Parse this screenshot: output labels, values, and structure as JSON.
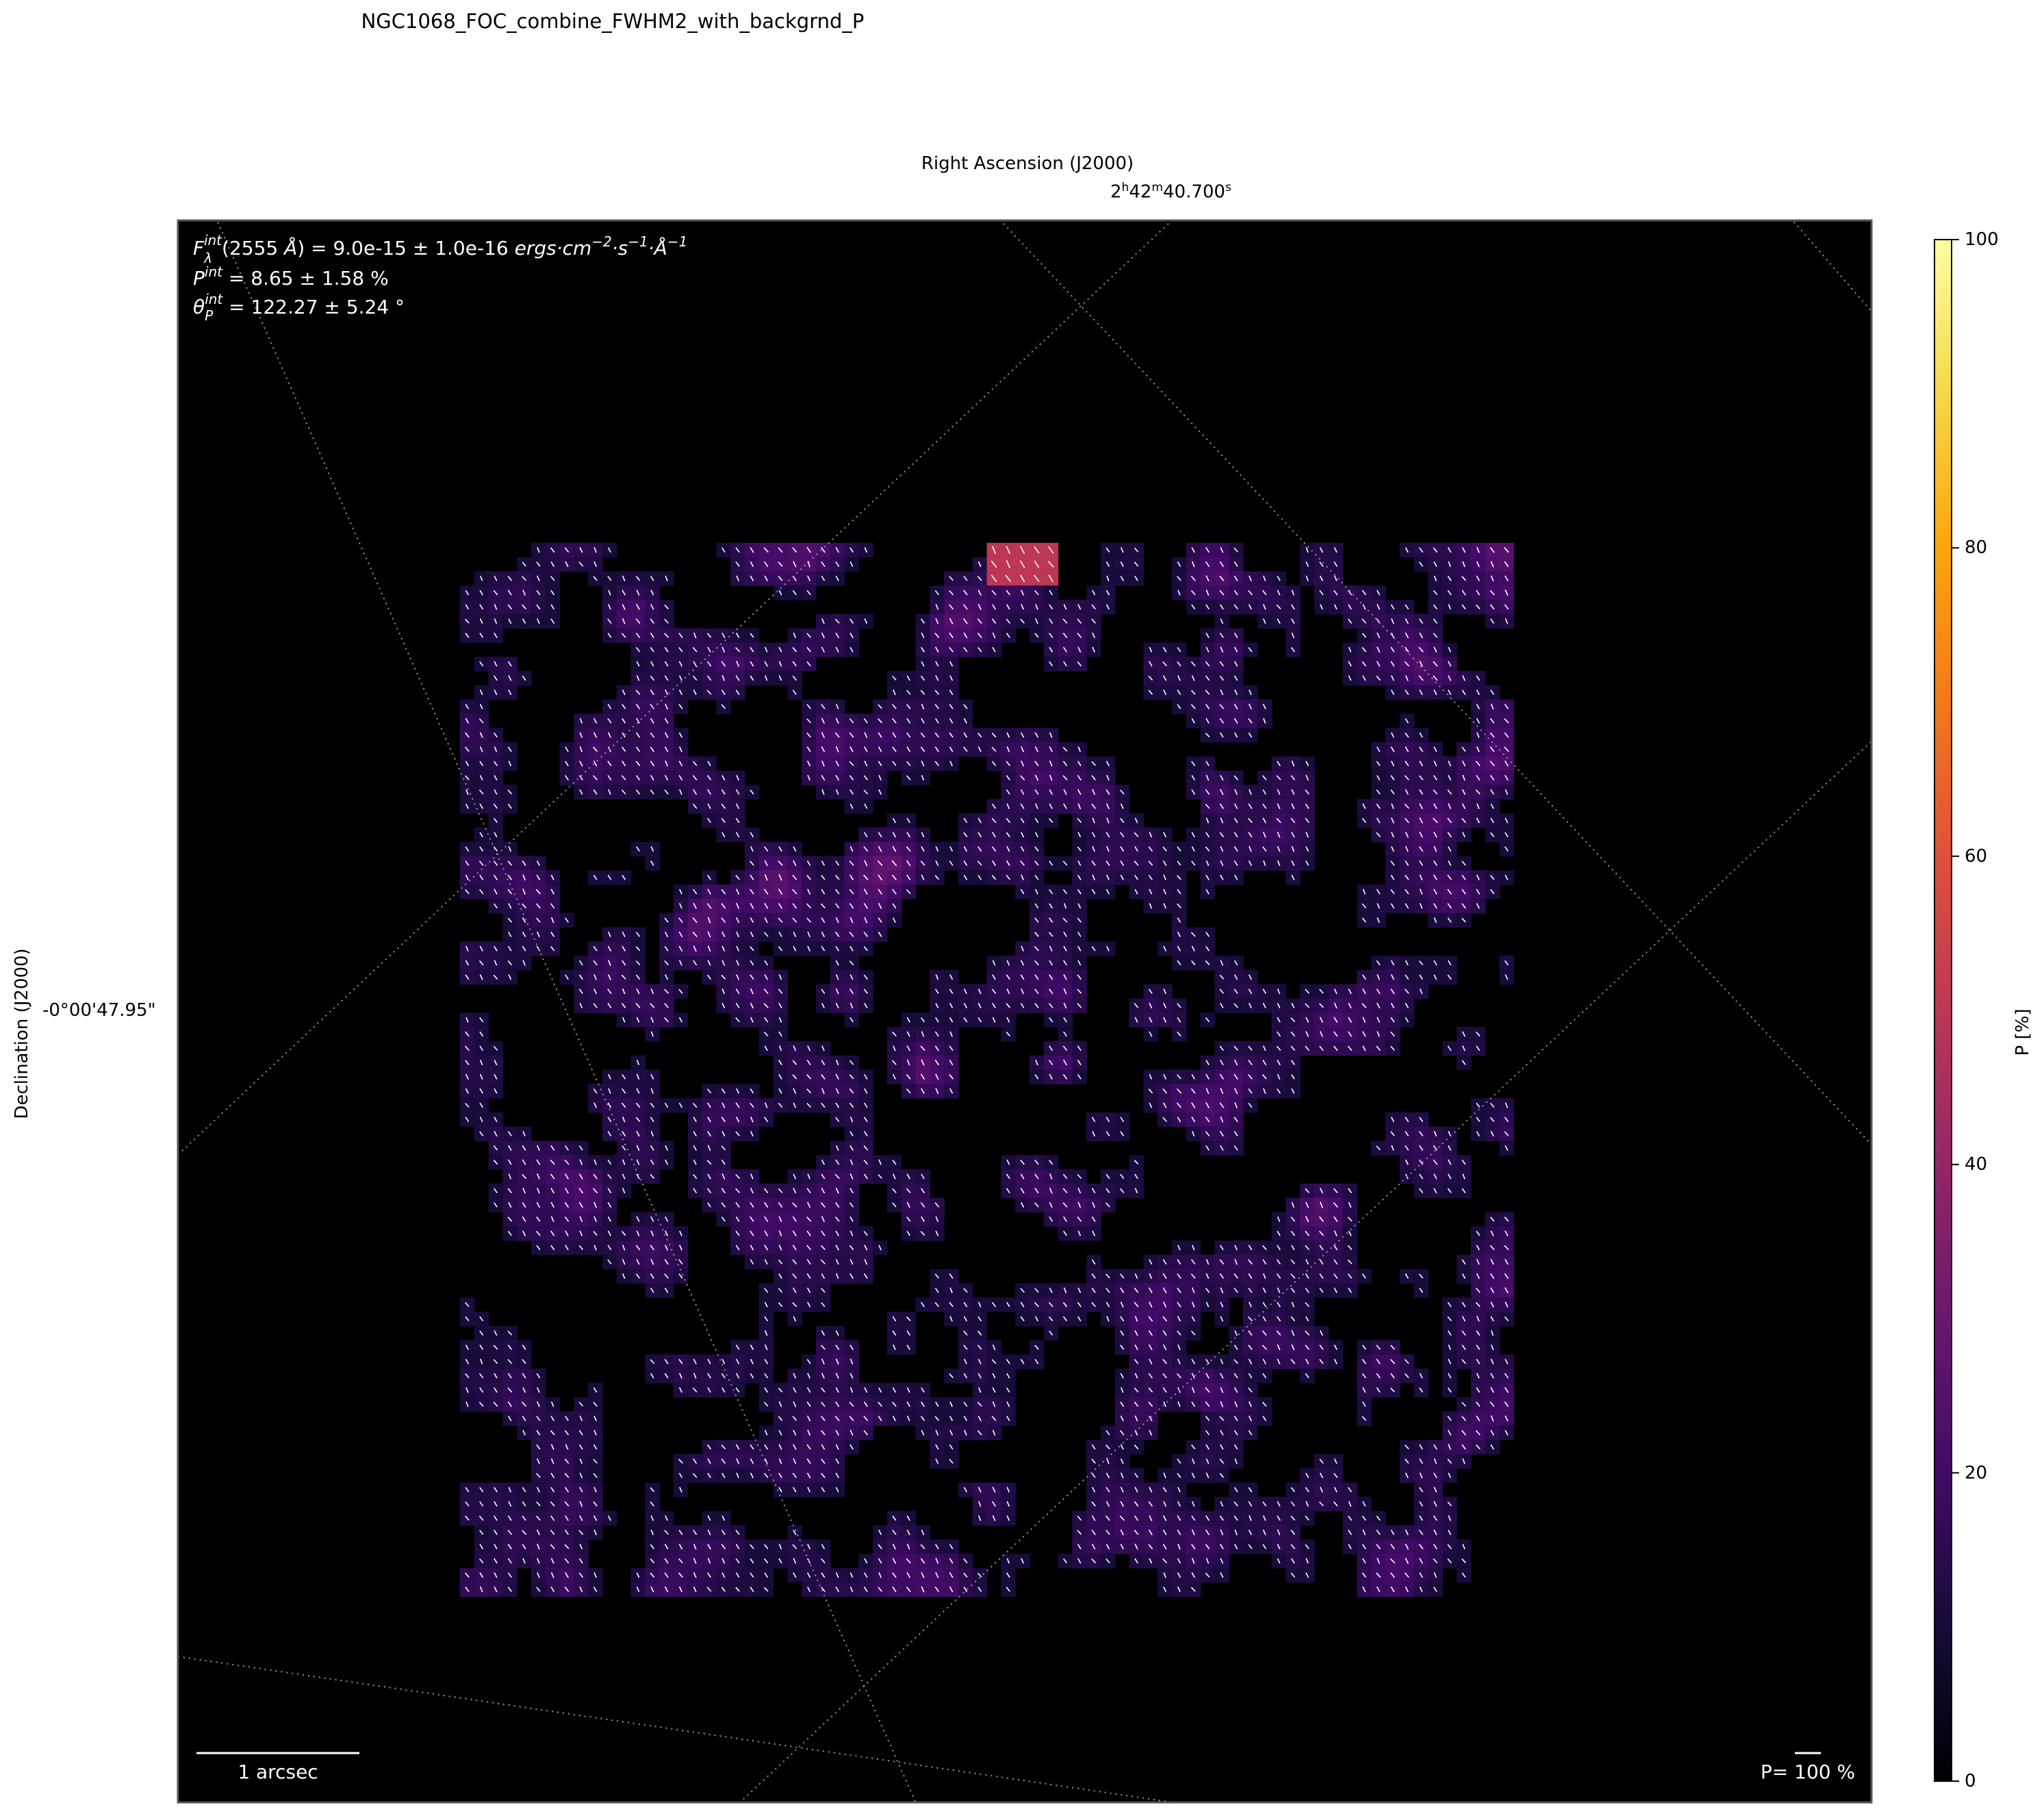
{
  "figure": {
    "title": "NGC1068_FOC_combine_FWHM2_with_backgrnd_P",
    "xlabel": "Right Ascension (J2000)",
    "ylabel": "Declination (J2000)",
    "ra_tick": "2h42m40.700s",
    "ra_tick_parts": {
      "h": "2",
      "hs": "h",
      "m": "42",
      "ms": "m",
      "s": "40.700",
      "ss": "s"
    },
    "dec_tick": "-0°00'47.95\"",
    "colorbar_label": "P [%]",
    "scale_bar_label": "1 arcsec",
    "vector_scale_label": "P= 100 %"
  },
  "annotations": {
    "flux": "F_λ^int(2555 Å) = 9.0e-15 ± 1.0e-16 ergs·cm^-2·s^-1·Å^-1",
    "flux_parts": {
      "F": "F",
      "sub": "λ",
      "sup": "int",
      "mid": "(2555 ",
      "A": "Å",
      "val": ") = 9.0e-15 ± 1.0e-16 ",
      "units": "ergs·cm",
      "e1": "−2",
      "u2": "·s",
      "e2": "−1",
      "u3": "·Å",
      "e3": "−1"
    },
    "pol_degree": "P^int = 8.65 ± 1.58 %",
    "pol_parts": {
      "P": "P",
      "sup": "int",
      "val": " = 8.65 ± 1.58 %"
    },
    "pol_angle": "θ_P^int = 122.27 ± 5.24 °",
    "ang_parts": {
      "T": "θ",
      "sub": "P",
      "sup": "int",
      "val": " = 122.27 ± 5.24 °"
    }
  },
  "chart_data": {
    "type": "heatmap",
    "title": "NGC1068_FOC_combine_FWHM2_with_backgrnd_P",
    "xlabel": "Right Ascension (J2000)",
    "ylabel": "Declination (J2000)",
    "colormap": "inferno",
    "colorbar": {
      "label": "P [%]",
      "range": [
        0,
        100
      ],
      "ticks": [
        0,
        20,
        40,
        60,
        80,
        100
      ]
    },
    "integrated": {
      "flux_2555A": "9.0e-15 ± 1.0e-16",
      "P_percent": [
        8.65,
        1.58
      ],
      "theta_P_deg": [
        122.27,
        5.24
      ]
    },
    "typical_P_percent": [
      10,
      30
    ],
    "peak_P_percent": 50,
    "vector_angle_deg": 122,
    "grid": true,
    "background": "#000000"
  },
  "colors": {
    "background": "#000000",
    "vectors": "#ffffff",
    "grid": "#9a9a9a"
  }
}
